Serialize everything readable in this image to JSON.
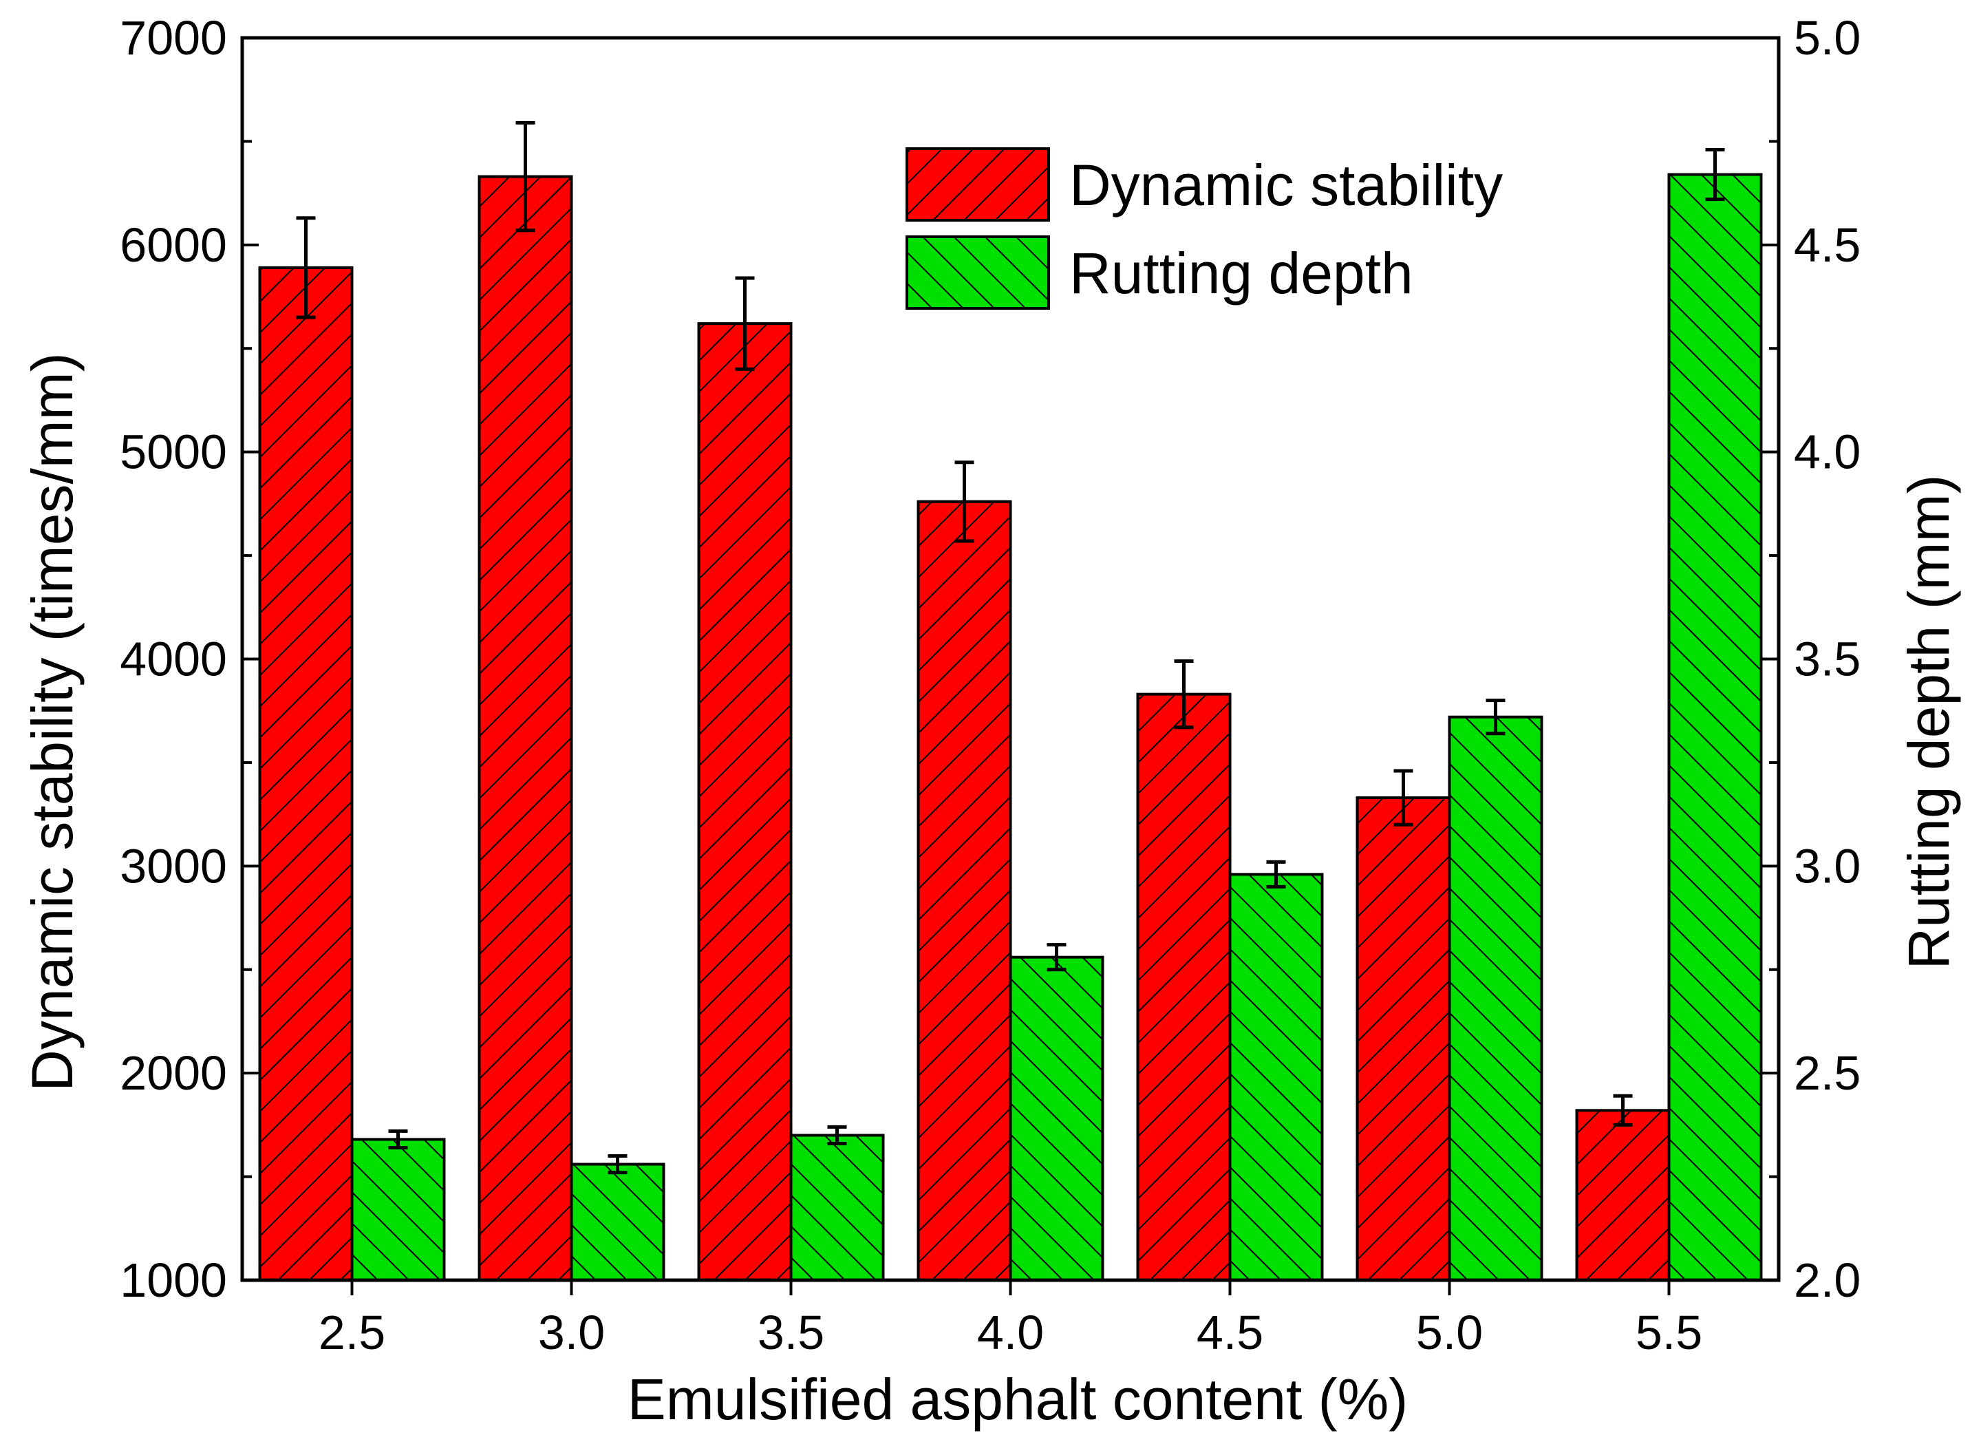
{
  "chart_data": {
    "type": "bar",
    "xlabel": "Emulsified asphalt content (%)",
    "ylabel": "Dynamic stability (times/mm)",
    "ylabel_right": "Rutting depth (mm)",
    "categories": [
      "2.5",
      "3.0",
      "3.5",
      "4.0",
      "4.5",
      "5.0",
      "5.5"
    ],
    "ylim": [
      1000,
      7000
    ],
    "ylim_right": [
      2.0,
      5.0
    ],
    "yticks": [
      "1000",
      "2000",
      "3000",
      "4000",
      "5000",
      "6000",
      "7000"
    ],
    "yticks_right": [
      "2.0",
      "2.5",
      "3.0",
      "3.5",
      "4.0",
      "4.5",
      "5.0"
    ],
    "legend_position": "top-right",
    "series": [
      {
        "name": "Dynamic stability",
        "axis": "left",
        "color": "#ff0000",
        "values": [
          5890,
          6330,
          5620,
          4760,
          3830,
          3330,
          1820
        ],
        "errors": [
          240,
          260,
          220,
          190,
          160,
          130,
          70
        ]
      },
      {
        "name": "Rutting depth",
        "axis": "right",
        "color": "#00e000",
        "values": [
          2.34,
          2.28,
          2.35,
          2.78,
          2.98,
          3.36,
          4.67
        ],
        "errors": [
          0.02,
          0.02,
          0.02,
          0.03,
          0.03,
          0.04,
          0.06
        ]
      }
    ]
  }
}
